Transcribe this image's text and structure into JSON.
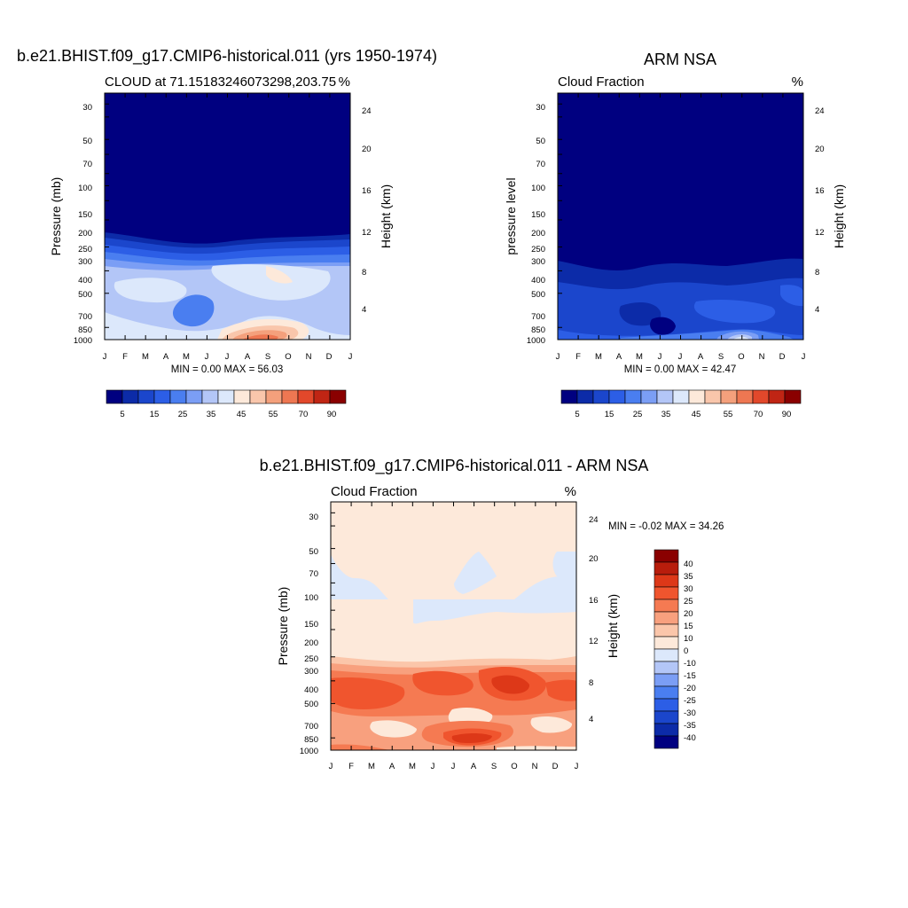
{
  "chart_data": [
    {
      "type": "heatmap",
      "title": "b.e21.BHIST.f09_g17.CMIP6-historical.011 (yrs 1950-1974)",
      "left_label": "CLOUD at 71.15183246073298,203.75",
      "right_label": "%",
      "ylabel": "Pressure (mb)",
      "ylabel_right": "Height (km)",
      "x_ticks": [
        "J",
        "F",
        "M",
        "A",
        "M",
        "J",
        "J",
        "A",
        "S",
        "O",
        "N",
        "D",
        "J"
      ],
      "y_ticks": [
        30,
        50,
        70,
        100,
        150,
        200,
        250,
        300,
        400,
        500,
        700,
        850,
        1000
      ],
      "y_ticks_right": [
        4,
        8,
        12,
        16,
        20,
        24
      ],
      "ylim": [
        1000,
        25
      ],
      "y_scale": "log",
      "min_max": "MIN =   0.00 MAX =  56.03",
      "colorbar": {
        "orientation": "horizontal",
        "labels": [
          "5",
          "15",
          "25",
          "35",
          "45",
          "55",
          "70",
          "90"
        ],
        "colors": [
          "#000080",
          "#0c2ba8",
          "#1b46cc",
          "#2c5ee6",
          "#4a7ef0",
          "#7b9ef5",
          "#b3c6f7",
          "#dce8fb",
          "#fde9da",
          "#f9c6ab",
          "#f4a07c",
          "#ee7752",
          "#e2482b",
          "#c02514",
          "#8a0000"
        ]
      },
      "values_description_levels": [
        0,
        40,
        45,
        55
      ]
    },
    {
      "type": "heatmap",
      "title": "ARM NSA",
      "left_label": "Cloud Fraction",
      "right_label": "%",
      "ylabel": "pressure level",
      "ylabel_right": "Height (km)",
      "x_ticks": [
        "J",
        "F",
        "M",
        "A",
        "M",
        "J",
        "J",
        "A",
        "S",
        "O",
        "N",
        "D",
        "J"
      ],
      "y_ticks": [
        30,
        50,
        70,
        100,
        150,
        200,
        250,
        300,
        400,
        500,
        700,
        850,
        1000
      ],
      "y_ticks_right": [
        4,
        8,
        12,
        16,
        20,
        24
      ],
      "ylim": [
        1000,
        25
      ],
      "y_scale": "log",
      "min_max": "MIN =   0.00 MAX =  42.47",
      "colorbar": {
        "orientation": "horizontal",
        "labels": [
          "5",
          "15",
          "25",
          "35",
          "45",
          "55",
          "70",
          "90"
        ],
        "colors": [
          "#000080",
          "#0c2ba8",
          "#1b46cc",
          "#2c5ee6",
          "#4a7ef0",
          "#7b9ef5",
          "#b3c6f7",
          "#dce8fb",
          "#fde9da",
          "#f9c6ab",
          "#f4a07c",
          "#ee7752",
          "#e2482b",
          "#c02514",
          "#8a0000"
        ]
      }
    },
    {
      "type": "heatmap",
      "title": "b.e21.BHIST.f09_g17.CMIP6-historical.011 - ARM NSA",
      "left_label": "Cloud Fraction",
      "right_label": "%",
      "ylabel": "Pressure (mb)",
      "ylabel_right": "Height (km)",
      "x_ticks": [
        "J",
        "F",
        "M",
        "A",
        "M",
        "J",
        "J",
        "A",
        "S",
        "O",
        "N",
        "D",
        "J"
      ],
      "y_ticks": [
        30,
        50,
        70,
        100,
        150,
        200,
        250,
        300,
        400,
        500,
        700,
        850,
        1000
      ],
      "y_ticks_right": [
        4,
        8,
        12,
        16,
        20,
        24
      ],
      "ylim": [
        1000,
        25
      ],
      "y_scale": "log",
      "min_max": "MIN =  -0.02 MAX =  34.26",
      "colorbar": {
        "orientation": "vertical",
        "labels": [
          "40",
          "35",
          "30",
          "25",
          "20",
          "15",
          "10",
          "0",
          "-10",
          "-15",
          "-20",
          "-25",
          "-30",
          "-35",
          "-40"
        ],
        "colors": [
          "#8a0000",
          "#b81d0c",
          "#dd3818",
          "#f0552e",
          "#f57a52",
          "#f8a07e",
          "#fbc6aa",
          "#fde9da",
          "#dce8fb",
          "#b3c6f7",
          "#7b9ef5",
          "#4a7ef0",
          "#2c5ee6",
          "#1b46cc",
          "#0c2ba8",
          "#000080"
        ]
      }
    }
  ]
}
